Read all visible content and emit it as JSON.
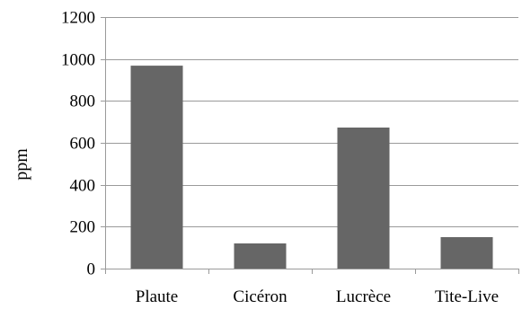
{
  "chart_data": {
    "type": "bar",
    "categories": [
      "Plaute",
      "Cicéron",
      "Lucrèce",
      "Tite-Live"
    ],
    "values": [
      968,
      120,
      673,
      150
    ],
    "title": "",
    "xlabel": "",
    "ylabel": "ppm",
    "ylim": [
      0,
      1200
    ],
    "yticks": [
      0,
      200,
      400,
      600,
      800,
      1000,
      1200
    ],
    "grid": true,
    "legend": "none",
    "colors": {
      "bar": "#666666",
      "grid": "#9a9a9a",
      "axis": "#9a9a9a",
      "text": "#000000"
    }
  }
}
